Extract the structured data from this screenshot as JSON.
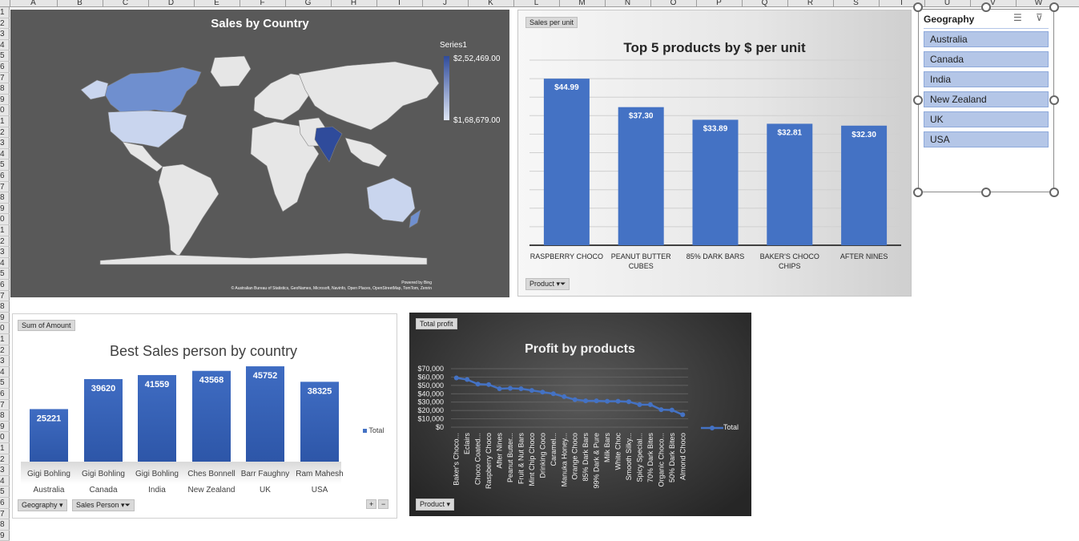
{
  "columns": [
    "A",
    "B",
    "C",
    "D",
    "E",
    "F",
    "G",
    "H",
    "I",
    "J",
    "K",
    "L",
    "M",
    "N",
    "O",
    "P",
    "Q",
    "R",
    "S",
    "T",
    "U",
    "V",
    "W"
  ],
  "rows": [
    "1",
    "2",
    "3",
    "4",
    "5",
    "6",
    "7",
    "8",
    "9",
    "0",
    "1",
    "2",
    "3",
    "4",
    "5",
    "6",
    "7",
    "8",
    "9",
    "0",
    "1",
    "2",
    "3",
    "4",
    "5",
    "6",
    "7",
    "8",
    "9",
    "0",
    "1",
    "2",
    "3",
    "4",
    "5",
    "6",
    "7",
    "8",
    "9",
    "0",
    "1",
    "2",
    "3",
    "4",
    "5",
    "6",
    "7",
    "8",
    "9"
  ],
  "map": {
    "title": "Sales by Country",
    "legend_title": "Series1",
    "legend_max": "$2,52,469.00",
    "legend_min": "$1,68,679.00",
    "powered": "Powered by Bing",
    "attribution": "© Australian Bureau of Statistics, GeoNames, Microsoft, Navinfo, Open Places, OpenStreetMap, TomTom, Zenrin",
    "colors": {
      "bg": "#595959",
      "land": "#e6e6e6",
      "high": "#2f4b9b",
      "mid": "#6f8fcf",
      "low": "#c9d5ee"
    }
  },
  "top5": {
    "tag": "Sales per unit",
    "filter": "Product",
    "chart_data": {
      "type": "bar",
      "title": "Top 5 products by $ per unit",
      "categories": [
        "RASPBERRY CHOCO",
        "PEANUT BUTTER CUBES",
        "85% DARK BARS",
        "BAKER'S CHOCO CHIPS",
        "AFTER NINES"
      ],
      "category_lines": [
        [
          "RASPBERRY CHOCO"
        ],
        [
          "PEANUT BUTTER",
          "CUBES"
        ],
        [
          "85% DARK BARS"
        ],
        [
          "BAKER'S CHOCO",
          "CHIPS"
        ],
        [
          "AFTER NINES"
        ]
      ],
      "values": [
        44.99,
        37.3,
        33.89,
        32.81,
        32.3
      ],
      "labels": [
        "$44.99",
        "$37.30",
        "$33.89",
        "$32.81",
        "$32.30"
      ],
      "ylim": [
        0,
        50
      ],
      "color": "#4472c4"
    }
  },
  "slicer": {
    "title": "Geography",
    "items": [
      "Australia",
      "Canada",
      "India",
      "New Zealand",
      "UK",
      "USA"
    ]
  },
  "best": {
    "tag": "Sum of Amount",
    "filters": [
      "Geography",
      "Sales Person"
    ],
    "legend": "Total",
    "chart_data": {
      "type": "bar",
      "title": "Best Sales person by country",
      "categories": [
        "Gigi Bohling",
        "Gigi Bohling",
        "Gigi Bohling",
        "Ches Bonnell",
        "Barr Faughny",
        "Ram Mahesh"
      ],
      "groups": [
        "Australia",
        "Canada",
        "India",
        "New Zealand",
        "UK",
        "USA"
      ],
      "series": [
        {
          "name": "Total",
          "values": [
            25221,
            39620,
            41559,
            43568,
            45752,
            38325
          ]
        }
      ],
      "ylim": [
        0,
        50000
      ],
      "color": "#4472c4"
    }
  },
  "profit": {
    "tag": "Total profit",
    "filter": "Product",
    "legend": "Total",
    "chart_data": {
      "type": "line",
      "title": "Profit by products",
      "categories": [
        "Baker's Choco...",
        "Eclairs",
        "Choco Coated...",
        "Raspberry Choco",
        "After Nines",
        "Peanut Butter...",
        "Fruit & Nut Bars",
        "Mint Chip Choco",
        "Drinking Coco",
        "Caramel...",
        "Manuka Honey...",
        "Orange Choco",
        "85% Dark Bars",
        "99% Dark & Pure",
        "Milk Bars",
        "White Choc",
        "Smooth Silky...",
        "Spicy Special...",
        "70% Dark Bites",
        "Organic Choco...",
        "50% Dark Bites",
        "Almond Choco"
      ],
      "series": [
        {
          "name": "Total",
          "values": [
            59000,
            57000,
            51500,
            51000,
            46000,
            46500,
            46000,
            44000,
            42000,
            40000,
            36500,
            33000,
            31500,
            31500,
            31000,
            31000,
            30500,
            27000,
            27000,
            21000,
            20500,
            15000
          ]
        }
      ],
      "yticks": [
        "$70,000",
        "$60,000",
        "$50,000",
        "$40,000",
        "$30,000",
        "$20,000",
        "$10,000",
        "$0"
      ],
      "ylim": [
        0,
        70000
      ],
      "color": "#4472c4"
    }
  }
}
